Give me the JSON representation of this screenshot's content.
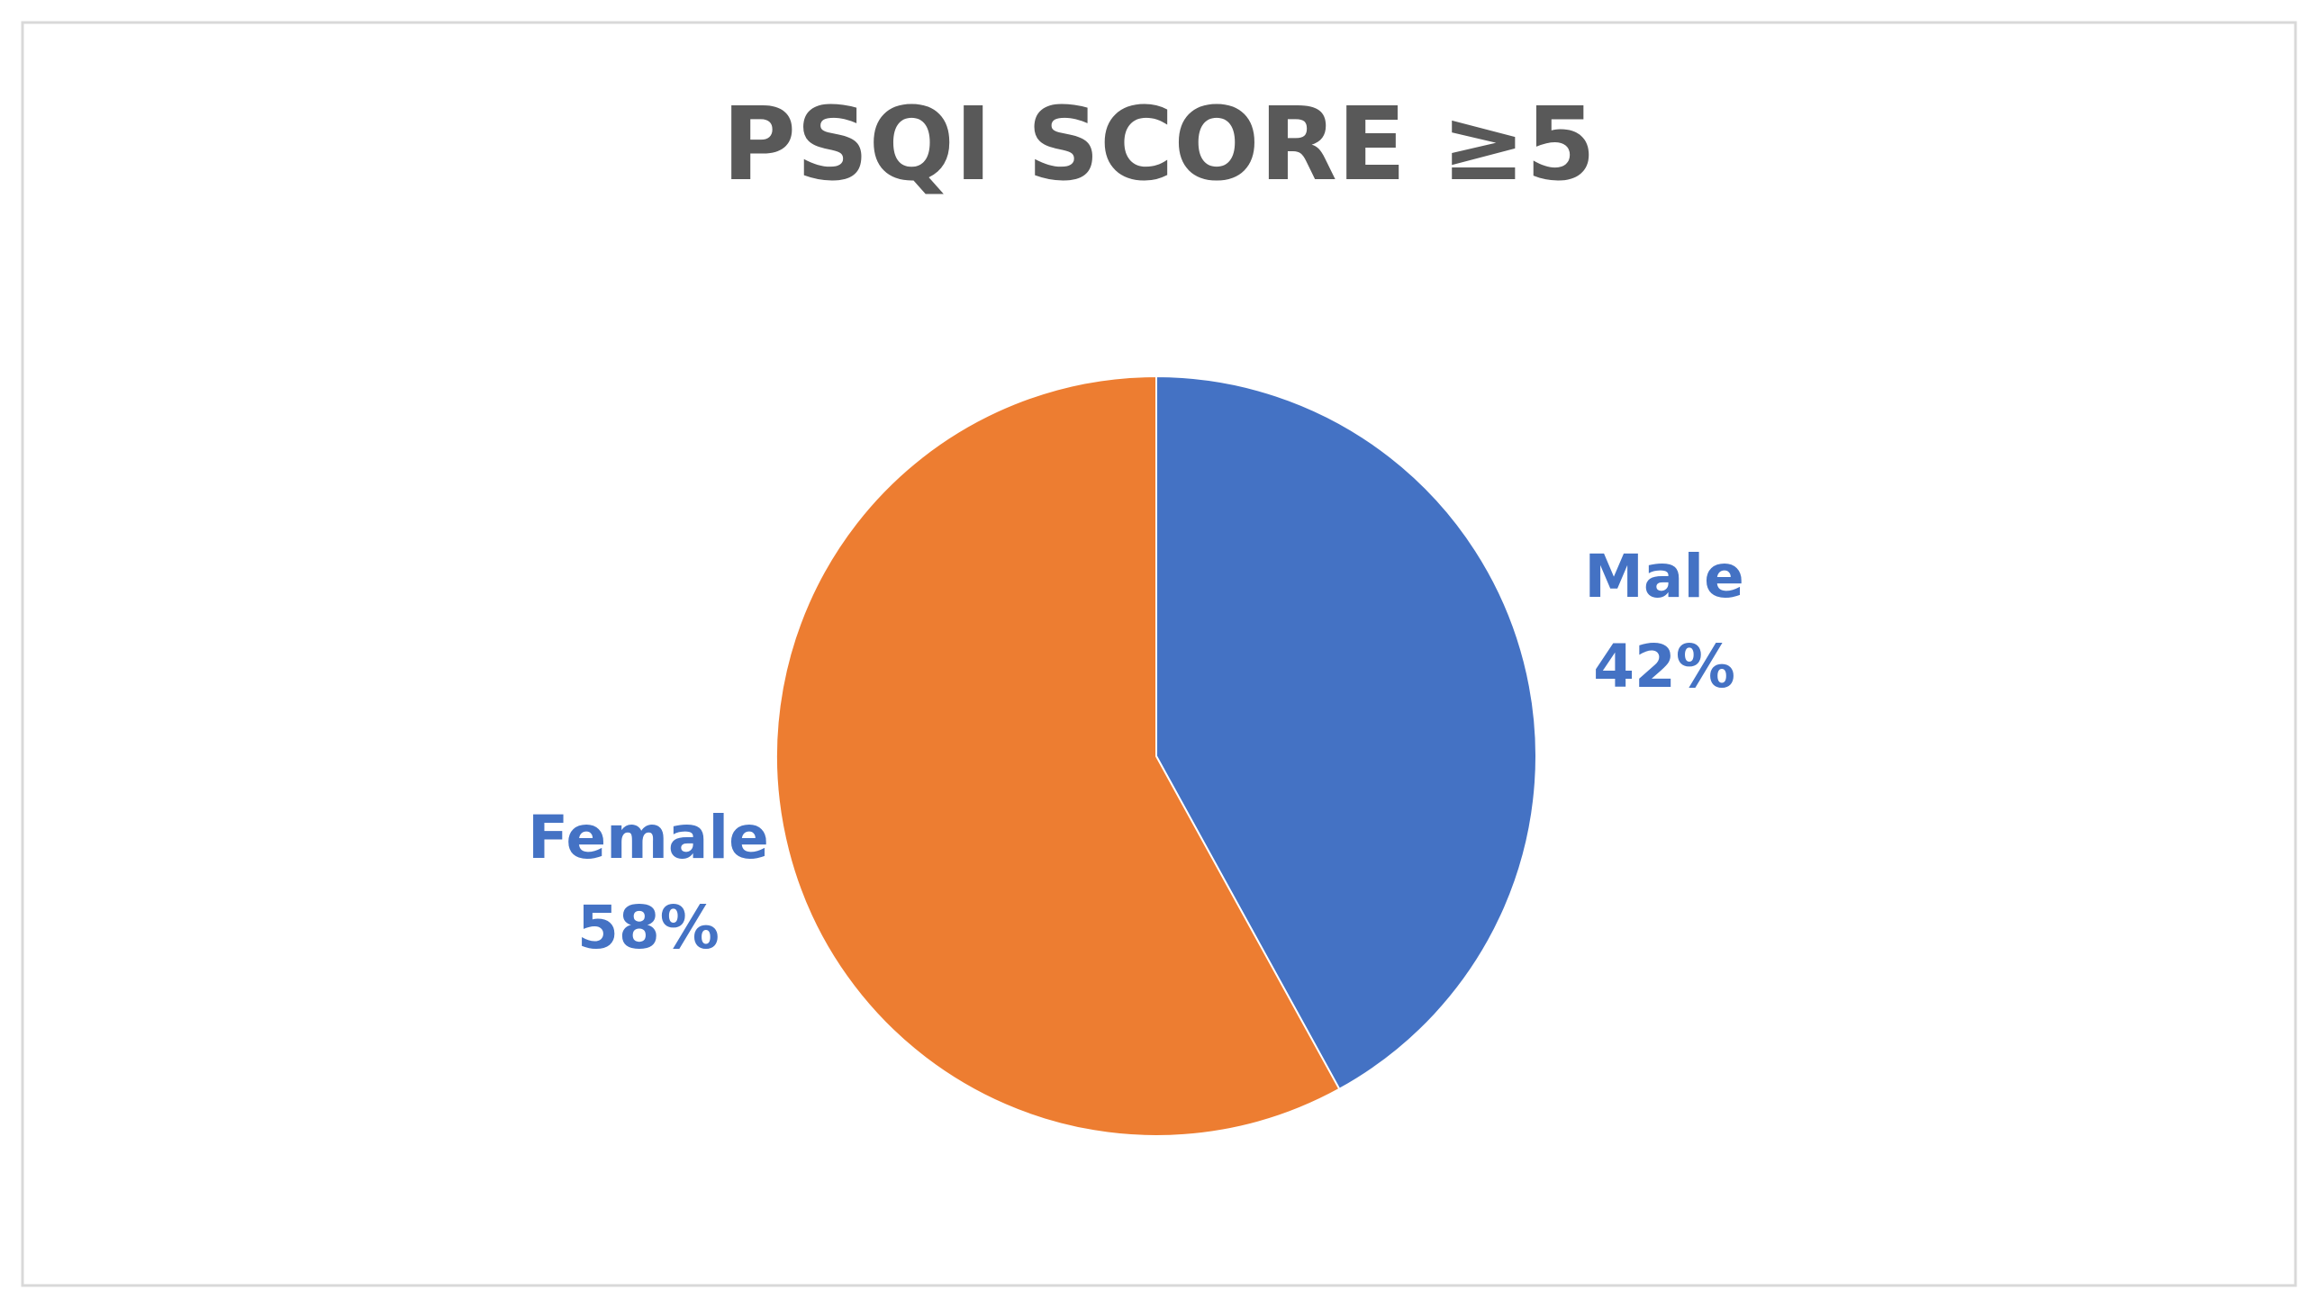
{
  "chart_data": {
    "type": "pie",
    "title": "PSQI SCORE ≥5",
    "categories": [
      "Male",
      "Female"
    ],
    "values": [
      42,
      58
    ],
    "value_labels": [
      "42%",
      "58%"
    ],
    "colors": [
      "#4472c4",
      "#ed7d31"
    ],
    "label_color": "#4472c4"
  }
}
